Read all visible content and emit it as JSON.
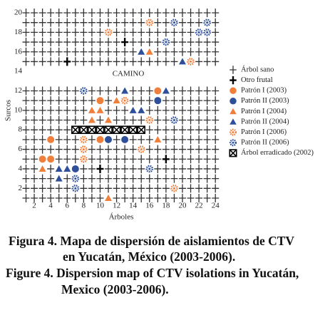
{
  "chart_data": {
    "type": "scatter",
    "xlabel": "Árboles",
    "ylabel": "Surcos",
    "annotation": "CAMINO",
    "xlim": [
      1,
      24
    ],
    "ylim": [
      1,
      20
    ],
    "xticks": [
      2,
      4,
      6,
      8,
      10,
      12,
      14,
      16,
      18,
      20,
      22,
      24
    ],
    "yticks": [
      2,
      4,
      6,
      8,
      10,
      12,
      14,
      16,
      18,
      20
    ],
    "series": [
      {
        "name": "Árbol sano",
        "marker": "cross",
        "color": "#333333",
        "columns": [
          1,
          2,
          3,
          4,
          5,
          6,
          7,
          8,
          9,
          10,
          11,
          12,
          13,
          14,
          15,
          16,
          17,
          18,
          19,
          20,
          21,
          22,
          23,
          24
        ],
        "rows": [
          1,
          2,
          3,
          4,
          5,
          6,
          7,
          8,
          9,
          10,
          11,
          12,
          15,
          16,
          17,
          18,
          19,
          20
        ]
      },
      {
        "name": "Otro frutal",
        "marker": "boldcross",
        "color": "#000000",
        "x": [
          10,
          13,
          18,
          6
        ],
        "y": [
          4,
          17,
          5,
          15
        ]
      },
      {
        "name": "Patrón I (2003)",
        "marker": "circle",
        "color": "#f07f3c",
        "x": [
          17,
          10,
          4,
          3,
          4,
          10
        ],
        "y": [
          12,
          11,
          7,
          5,
          5,
          7
        ]
      },
      {
        "name": "Patrón II (2003)",
        "marker": "circle",
        "color": "#2e4f9a",
        "x": [
          17,
          11,
          13,
          7
        ],
        "y": [
          11,
          7,
          7,
          4
        ]
      },
      {
        "name": "Patrón I (2004)",
        "marker": "triangle",
        "color": "#f07f3c",
        "x": [
          16,
          12,
          9,
          10,
          9,
          11,
          17,
          3,
          11
        ],
        "y": [
          16,
          11,
          10,
          10,
          9,
          9,
          7,
          4,
          1
        ]
      },
      {
        "name": "Patrón II (2004)",
        "marker": "triangle",
        "color": "#2e4f9a",
        "x": [
          15,
          20,
          13,
          18,
          14,
          15,
          5,
          6,
          5
        ],
        "y": [
          16,
          15,
          12,
          12,
          10,
          10,
          4,
          4,
          3
        ]
      },
      {
        "name": "Patrón I (2006)",
        "marker": "star",
        "color": "#f07f3c",
        "x": [
          11,
          16,
          21,
          13,
          16,
          8,
          8,
          15,
          8,
          19
        ],
        "y": [
          18,
          19,
          15,
          11,
          9,
          7,
          6,
          6,
          5,
          2
        ]
      },
      {
        "name": "Patrón II (2006)",
        "marker": "star",
        "color": "#2e4f9a",
        "x": [
          19,
          23,
          22,
          23,
          18,
          8,
          19,
          16,
          7,
          7
        ],
        "y": [
          19,
          19,
          18,
          18,
          17,
          12,
          9,
          4,
          3,
          2
        ]
      },
      {
        "name": "Árbol erradicado (2002)",
        "marker": "box",
        "color": "#000000",
        "x": [
          7,
          8,
          9,
          10,
          11,
          12,
          13,
          14,
          15
        ],
        "y": [
          8,
          8,
          8,
          8,
          8,
          8,
          8,
          8,
          8
        ]
      }
    ],
    "caption": [
      "Figura 4. Mapa de dispersión de aislamientos de CTV",
      "en Yucatán, México (2003-2006).",
      "Figure 4. Dispersion map of CTV isolations in Yucatán,",
      "Mexico (2003-2006)."
    ]
  }
}
